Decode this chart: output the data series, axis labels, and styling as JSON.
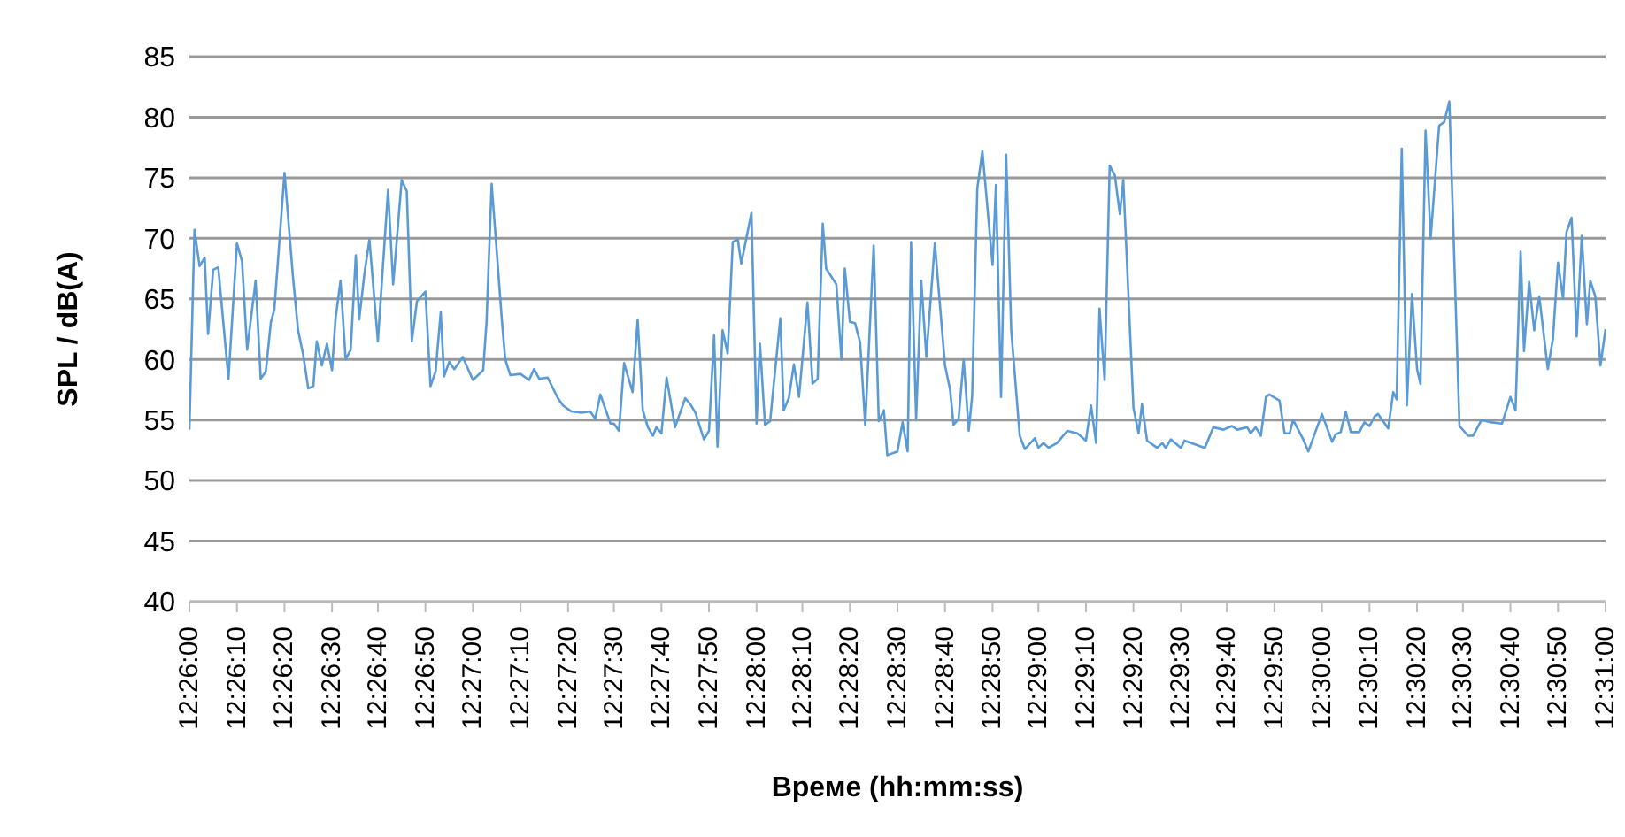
{
  "chart_data": {
    "type": "line",
    "xlabel": "Време (hh:mm:ss)",
    "ylabel": "SPL / dB(A)",
    "xlim": [
      12.4333,
      12.5167
    ],
    "ylim": [
      40,
      85
    ],
    "yticks": [
      40,
      45,
      50,
      55,
      60,
      65,
      70,
      75,
      80,
      85
    ],
    "xticks": [
      {
        "value": 12.4333,
        "label": "12:26:00"
      },
      {
        "value": 12.4361,
        "label": "12:26:10"
      },
      {
        "value": 12.4389,
        "label": "12:26:20"
      },
      {
        "value": 12.4417,
        "label": "12:26:30"
      },
      {
        "value": 12.4444,
        "label": "12:26:40"
      },
      {
        "value": 12.4472,
        "label": "12:26:50"
      },
      {
        "value": 12.45,
        "label": "12:27:00"
      },
      {
        "value": 12.4528,
        "label": "12:27:10"
      },
      {
        "value": 12.4556,
        "label": "12:27:20"
      },
      {
        "value": 12.4583,
        "label": "12:27:30"
      },
      {
        "value": 12.4611,
        "label": "12:27:40"
      },
      {
        "value": 12.4639,
        "label": "12:27:50"
      },
      {
        "value": 12.4667,
        "label": "12:28:00"
      },
      {
        "value": 12.4694,
        "label": "12:28:10"
      },
      {
        "value": 12.4722,
        "label": "12:28:20"
      },
      {
        "value": 12.475,
        "label": "12:28:30"
      },
      {
        "value": 12.4778,
        "label": "12:28:40"
      },
      {
        "value": 12.4806,
        "label": "12:28:50"
      },
      {
        "value": 12.4833,
        "label": "12:29:00"
      },
      {
        "value": 12.4861,
        "label": "12:29:10"
      },
      {
        "value": 12.4889,
        "label": "12:29:20"
      },
      {
        "value": 12.4917,
        "label": "12:29:30"
      },
      {
        "value": 12.4944,
        "label": "12:29:40"
      },
      {
        "value": 12.4972,
        "label": "12:29:50"
      },
      {
        "value": 12.5,
        "label": "12:30:00"
      },
      {
        "value": 12.5028,
        "label": "12:30:10"
      },
      {
        "value": 12.5056,
        "label": "12:30:20"
      },
      {
        "value": 12.5083,
        "label": "12:30:30"
      },
      {
        "value": 12.5111,
        "label": "12:30:40"
      },
      {
        "value": 12.5139,
        "label": "12:30:50"
      },
      {
        "value": 12.5167,
        "label": "12:31:00"
      }
    ],
    "grid": "y",
    "legend": false,
    "marker": "none",
    "line_style": "solid",
    "x": [
      12.4333,
      12.4336,
      12.4339,
      12.4342,
      12.4344,
      12.4347,
      12.435,
      12.4356,
      12.4361,
      12.4364,
      12.4367,
      12.4372,
      12.4375,
      12.4378,
      12.4381,
      12.4383,
      12.4389,
      12.4394,
      12.4397,
      12.44,
      12.4403,
      12.4406,
      12.4408,
      12.4411,
      12.4414,
      12.4417,
      12.4419,
      12.4422,
      12.4425,
      12.4428,
      12.4431,
      12.4433,
      12.4436,
      12.4439,
      12.4444,
      12.445,
      12.4453,
      12.4458,
      12.4461,
      12.4464,
      12.4467,
      12.4472,
      12.4475,
      12.4478,
      12.4481,
      12.4483,
      12.4486,
      12.4489,
      12.4494,
      12.45,
      12.4506,
      12.4508,
      12.4511,
      12.4517,
      12.4519,
      12.4522,
      12.4528,
      12.4533,
      12.4536,
      12.4539,
      12.4544,
      12.455,
      12.4553,
      12.4558,
      12.4564,
      12.4569,
      12.4572,
      12.4575,
      12.4581,
      12.4583,
      12.4586,
      12.4589,
      12.4594,
      12.4597,
      12.46,
      12.4603,
      12.4606,
      12.4608,
      12.4611,
      12.4614,
      12.4619,
      12.4625,
      12.4628,
      12.4631,
      12.4636,
      12.4639,
      12.4642,
      12.4644,
      12.4647,
      12.465,
      12.4653,
      12.4656,
      12.4658,
      12.4664,
      12.4667,
      12.4669,
      12.4672,
      12.4675,
      12.4681,
      12.4683,
      12.4686,
      12.4689,
      12.4692,
      12.4697,
      12.47,
      12.4703,
      12.4706,
      12.4708,
      12.4714,
      12.4717,
      12.4719,
      12.4722,
      12.4725,
      12.4728,
      12.4731,
      12.4736,
      12.4739,
      12.4742,
      12.4744,
      12.475,
      12.4753,
      12.4756,
      12.4758,
      12.4761,
      12.4764,
      12.4767,
      12.4772,
      12.4778,
      12.4781,
      12.4783,
      12.4786,
      12.4789,
      12.4792,
      12.4794,
      12.4797,
      12.48,
      12.4806,
      12.4808,
      12.4811,
      12.4814,
      12.4817,
      12.4822,
      12.4825,
      12.4831,
      12.4833,
      12.4836,
      12.4839,
      12.4844,
      12.485,
      12.4856,
      12.4861,
      12.4864,
      12.4867,
      12.4869,
      12.4872,
      12.4875,
      12.4878,
      12.4881,
      12.4883,
      12.4889,
      12.4892,
      12.4894,
      12.4897,
      12.4903,
      12.4906,
      12.4908,
      12.4911,
      12.4917,
      12.4919,
      12.4925,
      12.4931,
      12.4936,
      12.4942,
      12.4947,
      12.495,
      12.4956,
      12.4958,
      12.4961,
      12.4964,
      12.4967,
      12.4969,
      12.4975,
      12.4978,
      12.4981,
      12.4983,
      12.4989,
      12.4992,
      12.4994,
      12.5,
      12.5006,
      12.5008,
      12.5011,
      12.5014,
      12.5017,
      12.5022,
      12.5025,
      12.5028,
      12.5031,
      12.5033,
      12.5039,
      12.5042,
      12.5044,
      12.5047,
      12.505,
      12.5053,
      12.5056,
      12.5058,
      12.5061,
      12.5064,
      12.5069,
      12.5072,
      12.5075,
      12.5081,
      12.5086,
      12.5089,
      12.5094,
      12.51,
      12.5106,
      12.5111,
      12.5114,
      12.5117,
      12.5119,
      12.5122,
      12.5125,
      12.5128,
      12.5133,
      12.5136,
      12.5139,
      12.5142,
      12.5144,
      12.5147,
      12.515,
      12.5153,
      12.5156,
      12.5158,
      12.5161,
      12.5164,
      12.5167
    ],
    "series": [
      {
        "color": "#5b9bd5",
        "values": [
          54.2,
          70.7,
          67.7,
          68.4,
          62.1,
          67.4,
          67.6,
          58.4,
          69.6,
          68.1,
          60.8,
          66.5,
          58.4,
          59.0,
          63.1,
          64.1,
          75.4,
          66.8,
          62.4,
          60.4,
          57.6,
          57.8,
          61.5,
          59.5,
          61.3,
          59.1,
          63.3,
          66.5,
          60.0,
          60.8,
          68.6,
          63.3,
          67.0,
          69.9,
          61.5,
          74.0,
          66.2,
          74.8,
          73.9,
          61.5,
          64.8,
          65.6,
          57.8,
          59.0,
          63.9,
          58.6,
          59.8,
          59.2,
          60.2,
          58.3,
          59.1,
          63.1,
          74.5,
          63.3,
          60.0,
          58.7,
          58.8,
          58.3,
          59.2,
          58.4,
          58.5,
          56.8,
          56.2,
          55.7,
          55.6,
          55.7,
          55.1,
          57.1,
          54.7,
          54.7,
          54.1,
          59.7,
          57.3,
          63.3,
          55.8,
          54.4,
          53.7,
          54.4,
          53.9,
          58.5,
          54.4,
          56.8,
          56.3,
          55.6,
          53.4,
          54.1,
          62.0,
          52.8,
          62.4,
          60.5,
          69.7,
          69.9,
          67.9,
          72.1,
          54.7,
          61.3,
          54.6,
          54.9,
          63.4,
          55.8,
          56.8,
          59.6,
          56.9,
          64.7,
          58.0,
          58.4,
          71.2,
          67.5,
          66.2,
          60.0,
          67.5,
          63.1,
          63.0,
          61.4,
          54.6,
          69.4,
          54.9,
          55.8,
          52.1,
          52.4,
          54.8,
          52.4,
          69.7,
          55.1,
          66.5,
          60.2,
          69.6,
          59.5,
          57.5,
          54.6,
          55.1,
          60.0,
          54.1,
          57.0,
          74.1,
          77.2,
          67.8,
          74.4,
          56.9,
          76.9,
          62.4,
          53.7,
          52.6,
          53.5,
          52.7,
          53.1,
          52.7,
          53.1,
          54.1,
          53.9,
          53.3,
          56.2,
          53.1,
          64.2,
          58.3,
          76.0,
          75.2,
          72.0,
          74.8,
          56.0,
          53.9,
          56.3,
          53.3,
          52.7,
          53.1,
          52.7,
          53.4,
          52.7,
          53.3,
          53.0,
          52.7,
          54.4,
          54.2,
          54.5,
          54.2,
          54.4,
          53.9,
          54.4,
          53.7,
          56.9,
          57.1,
          56.6,
          53.9,
          53.9,
          55.0,
          53.4,
          52.4,
          53.2,
          55.5,
          53.2,
          53.8,
          54.0,
          55.7,
          54.0,
          54.0,
          54.8,
          54.5,
          55.3,
          55.5,
          54.3,
          57.3,
          56.7,
          77.4,
          56.2,
          65.4,
          59.2,
          58.0,
          78.9,
          70.0,
          79.3,
          79.6,
          81.3,
          54.5,
          53.7,
          53.7,
          55.0,
          54.8,
          54.7,
          56.9,
          55.8,
          68.9,
          60.7,
          66.4,
          62.4,
          65.2,
          59.2,
          61.7,
          68.0,
          65.0,
          70.5,
          71.7,
          61.9,
          70.2,
          62.9,
          66.5,
          65.2,
          59.5,
          62.5
        ]
      }
    ]
  }
}
